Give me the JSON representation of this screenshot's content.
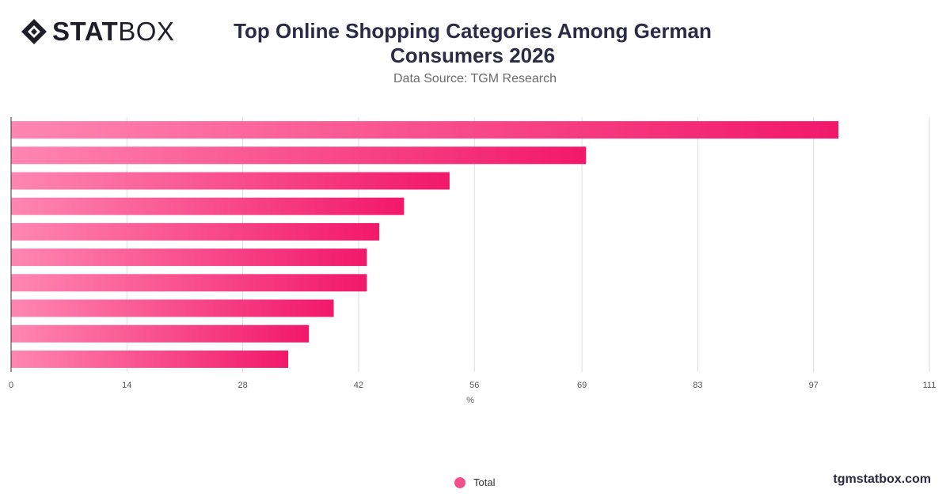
{
  "brand": {
    "logo_bold": "STAT",
    "logo_light": "BOX",
    "website": "tgmstatbox.com"
  },
  "header": {
    "title": "Top Online Shopping Categories Among German Consumers 2026",
    "subtitle": "Data Source: TGM Research"
  },
  "colors": {
    "bar_start": "#ff86b1",
    "bar_end": "#f2186a",
    "legend_marker": "#f0508a",
    "grid": "#dddddd"
  },
  "chart_data": {
    "type": "bar",
    "orientation": "horizontal",
    "categories": [
      "",
      "",
      "",
      "",
      "",
      "",
      "",
      "",
      "",
      ""
    ],
    "series": [
      {
        "name": "Total",
        "values": [
          100,
          69.5,
          53,
          47.5,
          44.5,
          43,
          43,
          39,
          36,
          33.5
        ]
      }
    ],
    "xlabel": "%",
    "ylabel": "",
    "xlim": [
      0,
      111
    ],
    "x_ticks": [
      "0",
      "14",
      "28",
      "42",
      "56",
      "69",
      "83",
      "97",
      "111"
    ],
    "grid": true,
    "legend_position": "bottom-center"
  },
  "legend": {
    "label": "Total"
  }
}
